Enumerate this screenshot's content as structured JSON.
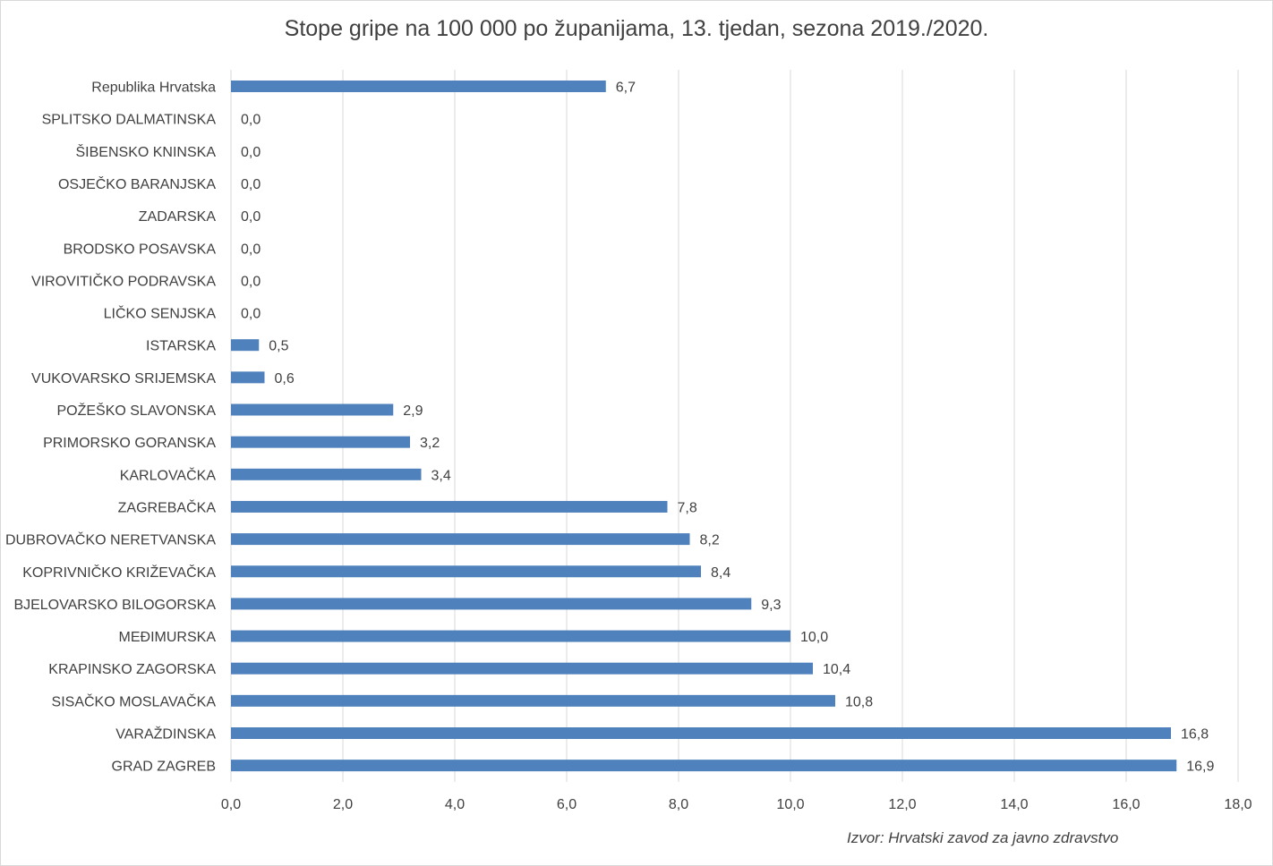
{
  "chart_data": {
    "type": "bar",
    "orientation": "horizontal",
    "title": "Stope gripe na 100 000 po županijama, 13. tjedan, sezona 2019./2020.",
    "source": "Izvor: Hrvatski zavod za javno zdravstvo",
    "categories": [
      "Republika Hrvatska",
      "SPLITSKO DALMATINSKA",
      "ŠIBENSKO KNINSKA",
      "OSJEČKO BARANJSKA",
      "ZADARSKA",
      "BRODSKO POSAVSKA",
      "VIROVITIČKO PODRAVSKA",
      "LIČKO SENJSKA",
      "ISTARSKA",
      "VUKOVARSKO SRIJEMSKA",
      "POŽEŠKO SLAVONSKA",
      "PRIMORSKO GORANSKA",
      "KARLOVAČKA",
      "ZAGREBAČKA",
      "DUBROVAČKO NERETVANSKA",
      "KOPRIVNIČKO KRIŽEVAČKA",
      "BJELOVARSKO BILOGORSKA",
      "MEĐIMURSKA",
      "KRAPINSKO ZAGORSKA",
      "SISAČKO MOSLAVAČKA",
      "VARAŽDINSKA",
      "GRAD ZAGREB"
    ],
    "values": [
      6.7,
      0.0,
      0.0,
      0.0,
      0.0,
      0.0,
      0.0,
      0.0,
      0.5,
      0.6,
      2.9,
      3.2,
      3.4,
      7.8,
      8.2,
      8.4,
      9.3,
      10.0,
      10.4,
      10.8,
      16.8,
      16.9
    ],
    "data_labels": [
      "6,7",
      "0,0",
      "0,0",
      "0,0",
      "0,0",
      "0,0",
      "0,0",
      "0,0",
      "0,5",
      "0,6",
      "2,9",
      "3,2",
      "3,4",
      "7,8",
      "8,2",
      "8,4",
      "9,3",
      "10,0",
      "10,4",
      "10,8",
      "16,8",
      "16,9"
    ],
    "xlim": [
      0,
      18
    ],
    "x_ticks": [
      0,
      2,
      4,
      6,
      8,
      10,
      12,
      14,
      16,
      18
    ],
    "x_tick_labels": [
      "0,0",
      "2,0",
      "4,0",
      "6,0",
      "8,0",
      "10,0",
      "12,0",
      "14,0",
      "16,0",
      "18,0"
    ],
    "grid": "vertical",
    "legend": "none",
    "bar_color": "#4f81bd",
    "grid_color": "#d9d9d9",
    "text_color": "#404040"
  }
}
